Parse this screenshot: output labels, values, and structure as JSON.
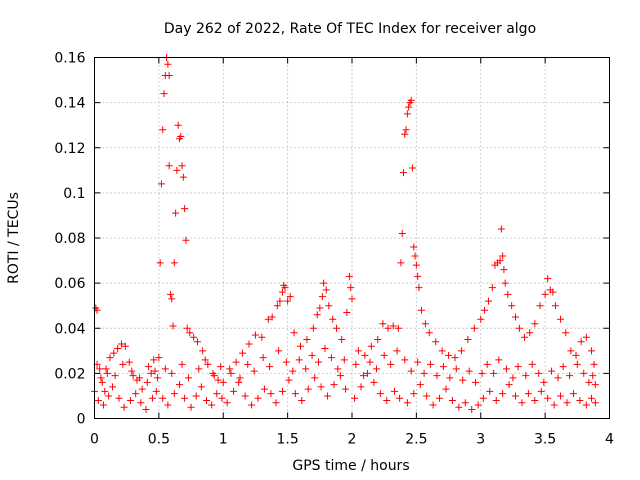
{
  "chart_data": {
    "type": "scatter",
    "title": "Day 262 of 2022, Rate Of TEC Index for receiver algo",
    "xlabel": "GPS time / hours",
    "ylabel": "ROTI / TECUs",
    "xlim": [
      0,
      4
    ],
    "ylim": [
      0,
      0.16
    ],
    "xticks": [
      0,
      0.5,
      1,
      1.5,
      2,
      2.5,
      3,
      3.5,
      4
    ],
    "xtick_labels": [
      "0",
      "0.5",
      "1",
      "1.5",
      "2",
      "2.5",
      "3",
      "3.5",
      "4"
    ],
    "yticks": [
      0,
      0.02,
      0.04,
      0.06,
      0.08,
      0.1,
      0.12,
      0.14,
      0.16
    ],
    "ytick_labels": [
      "0",
      "0.02",
      "0.04",
      "0.06",
      "0.08",
      "0.1",
      "0.12",
      "0.14",
      "0.16"
    ],
    "grid": true,
    "marker": "plus",
    "color": "#ff0000",
    "series": [
      {
        "name": "ROTI",
        "points": [
          [
            0.01,
            0.049
          ],
          [
            0.02,
            0.048
          ],
          [
            0.02,
            0.024
          ],
          [
            0.04,
            0.022
          ],
          [
            0.06,
            0.016
          ],
          [
            0.08,
            0.012
          ],
          [
            0.1,
            0.02
          ],
          [
            0.12,
            0.027
          ],
          [
            0.15,
            0.029
          ],
          [
            0.18,
            0.031
          ],
          [
            0.21,
            0.033
          ],
          [
            0.24,
            0.032
          ],
          [
            0.27,
            0.025
          ],
          [
            0.3,
            0.019
          ],
          [
            0.33,
            0.017
          ],
          [
            0.37,
            0.013
          ],
          [
            0.41,
            0.016
          ],
          [
            0.44,
            0.02
          ],
          [
            0.47,
            0.021
          ],
          [
            0.49,
            0.018
          ],
          [
            0.5,
            0.027
          ],
          [
            0.51,
            0.069
          ],
          [
            0.52,
            0.104
          ],
          [
            0.53,
            0.128
          ],
          [
            0.54,
            0.144
          ],
          [
            0.55,
            0.152
          ],
          [
            0.56,
            0.16
          ],
          [
            0.57,
            0.157
          ],
          [
            0.58,
            0.152
          ],
          [
            0.58,
            0.112
          ],
          [
            0.59,
            0.055
          ],
          [
            0.6,
            0.053
          ],
          [
            0.61,
            0.041
          ],
          [
            0.62,
            0.069
          ],
          [
            0.63,
            0.091
          ],
          [
            0.64,
            0.11
          ],
          [
            0.65,
            0.13
          ],
          [
            0.66,
            0.124
          ],
          [
            0.67,
            0.125
          ],
          [
            0.68,
            0.112
          ],
          [
            0.69,
            0.107
          ],
          [
            0.7,
            0.093
          ],
          [
            0.71,
            0.079
          ],
          [
            0.72,
            0.04
          ],
          [
            0.74,
            0.038
          ],
          [
            0.77,
            0.036
          ],
          [
            0.8,
            0.034
          ],
          [
            0.84,
            0.03
          ],
          [
            0.88,
            0.024
          ],
          [
            0.92,
            0.02
          ],
          [
            0.96,
            0.017
          ],
          [
            1.0,
            0.016
          ],
          [
            1.05,
            0.022
          ],
          [
            1.1,
            0.025
          ],
          [
            1.15,
            0.029
          ],
          [
            1.2,
            0.033
          ],
          [
            1.25,
            0.037
          ],
          [
            1.3,
            0.036
          ],
          [
            1.35,
            0.044
          ],
          [
            1.38,
            0.045
          ],
          [
            1.42,
            0.05
          ],
          [
            1.44,
            0.052
          ],
          [
            1.46,
            0.056
          ],
          [
            1.47,
            0.059
          ],
          [
            1.48,
            0.058
          ],
          [
            1.5,
            0.052
          ],
          [
            1.52,
            0.054
          ],
          [
            1.55,
            0.038
          ],
          [
            1.6,
            0.032
          ],
          [
            1.65,
            0.035
          ],
          [
            1.7,
            0.04
          ],
          [
            1.73,
            0.046
          ],
          [
            1.75,
            0.049
          ],
          [
            1.77,
            0.054
          ],
          [
            1.78,
            0.06
          ],
          [
            1.8,
            0.057
          ],
          [
            1.82,
            0.05
          ],
          [
            1.85,
            0.044
          ],
          [
            1.88,
            0.04
          ],
          [
            1.92,
            0.035
          ],
          [
            1.96,
            0.047
          ],
          [
            1.98,
            0.063
          ],
          [
            1.99,
            0.058
          ],
          [
            2.0,
            0.053
          ],
          [
            2.05,
            0.03
          ],
          [
            2.1,
            0.028
          ],
          [
            2.15,
            0.032
          ],
          [
            2.2,
            0.035
          ],
          [
            2.24,
            0.042
          ],
          [
            2.28,
            0.04
          ],
          [
            2.32,
            0.041
          ],
          [
            2.36,
            0.04
          ],
          [
            2.38,
            0.069
          ],
          [
            2.39,
            0.082
          ],
          [
            2.4,
            0.109
          ],
          [
            2.41,
            0.126
          ],
          [
            2.42,
            0.128
          ],
          [
            2.43,
            0.135
          ],
          [
            2.44,
            0.138
          ],
          [
            2.45,
            0.14
          ],
          [
            2.46,
            0.141
          ],
          [
            2.47,
            0.111
          ],
          [
            2.48,
            0.076
          ],
          [
            2.49,
            0.072
          ],
          [
            2.5,
            0.068
          ],
          [
            2.51,
            0.063
          ],
          [
            2.52,
            0.058
          ],
          [
            2.54,
            0.048
          ],
          [
            2.57,
            0.042
          ],
          [
            2.6,
            0.038
          ],
          [
            2.65,
            0.034
          ],
          [
            2.7,
            0.03
          ],
          [
            2.75,
            0.028
          ],
          [
            2.8,
            0.027
          ],
          [
            2.85,
            0.03
          ],
          [
            2.9,
            0.035
          ],
          [
            2.95,
            0.04
          ],
          [
            3.0,
            0.044
          ],
          [
            3.03,
            0.048
          ],
          [
            3.06,
            0.052
          ],
          [
            3.09,
            0.058
          ],
          [
            3.11,
            0.068
          ],
          [
            3.13,
            0.069
          ],
          [
            3.15,
            0.07
          ],
          [
            3.16,
            0.084
          ],
          [
            3.17,
            0.072
          ],
          [
            3.18,
            0.066
          ],
          [
            3.19,
            0.06
          ],
          [
            3.21,
            0.055
          ],
          [
            3.24,
            0.05
          ],
          [
            3.27,
            0.045
          ],
          [
            3.3,
            0.04
          ],
          [
            3.34,
            0.036
          ],
          [
            3.38,
            0.038
          ],
          [
            3.42,
            0.042
          ],
          [
            3.46,
            0.05
          ],
          [
            3.5,
            0.055
          ],
          [
            3.52,
            0.062
          ],
          [
            3.54,
            0.057
          ],
          [
            3.56,
            0.056
          ],
          [
            3.58,
            0.05
          ],
          [
            3.62,
            0.044
          ],
          [
            3.66,
            0.038
          ],
          [
            3.7,
            0.03
          ],
          [
            3.74,
            0.028
          ],
          [
            3.78,
            0.034
          ],
          [
            3.82,
            0.036
          ],
          [
            3.86,
            0.03
          ],
          [
            3.88,
            0.024
          ],
          [
            0.0,
            0.012
          ],
          [
            0.03,
            0.008
          ],
          [
            0.07,
            0.006
          ],
          [
            0.11,
            0.01
          ],
          [
            0.14,
            0.014
          ],
          [
            0.19,
            0.009
          ],
          [
            0.23,
            0.005
          ],
          [
            0.28,
            0.008
          ],
          [
            0.32,
            0.011
          ],
          [
            0.36,
            0.007
          ],
          [
            0.4,
            0.004
          ],
          [
            0.45,
            0.009
          ],
          [
            0.48,
            0.012
          ],
          [
            0.53,
            0.009
          ],
          [
            0.57,
            0.006
          ],
          [
            0.62,
            0.011
          ],
          [
            0.66,
            0.015
          ],
          [
            0.7,
            0.009
          ],
          [
            0.75,
            0.005
          ],
          [
            0.79,
            0.01
          ],
          [
            0.83,
            0.014
          ],
          [
            0.87,
            0.008
          ],
          [
            0.91,
            0.006
          ],
          [
            0.95,
            0.011
          ],
          [
            0.99,
            0.009
          ],
          [
            1.03,
            0.007
          ],
          [
            1.08,
            0.012
          ],
          [
            1.12,
            0.016
          ],
          [
            1.17,
            0.01
          ],
          [
            1.22,
            0.006
          ],
          [
            1.27,
            0.009
          ],
          [
            1.32,
            0.013
          ],
          [
            1.37,
            0.011
          ],
          [
            1.41,
            0.007
          ],
          [
            1.46,
            0.012
          ],
          [
            1.51,
            0.017
          ],
          [
            1.56,
            0.011
          ],
          [
            1.61,
            0.008
          ],
          [
            1.66,
            0.013
          ],
          [
            1.71,
            0.018
          ],
          [
            1.76,
            0.014
          ],
          [
            1.81,
            0.01
          ],
          [
            1.86,
            0.015
          ],
          [
            1.91,
            0.019
          ],
          [
            1.95,
            0.013
          ],
          [
            2.02,
            0.009
          ],
          [
            2.07,
            0.014
          ],
          [
            2.12,
            0.02
          ],
          [
            2.17,
            0.016
          ],
          [
            2.22,
            0.011
          ],
          [
            2.27,
            0.008
          ],
          [
            2.33,
            0.012
          ],
          [
            2.37,
            0.009
          ],
          [
            2.43,
            0.007
          ],
          [
            2.48,
            0.011
          ],
          [
            2.53,
            0.015
          ],
          [
            2.58,
            0.01
          ],
          [
            2.63,
            0.006
          ],
          [
            2.68,
            0.009
          ],
          [
            2.73,
            0.013
          ],
          [
            2.78,
            0.008
          ],
          [
            2.83,
            0.005
          ],
          [
            2.88,
            0.007
          ],
          [
            2.93,
            0.004
          ],
          [
            2.98,
            0.006
          ],
          [
            3.02,
            0.009
          ],
          [
            3.07,
            0.012
          ],
          [
            3.12,
            0.008
          ],
          [
            3.17,
            0.011
          ],
          [
            3.22,
            0.015
          ],
          [
            3.27,
            0.01
          ],
          [
            3.32,
            0.007
          ],
          [
            3.37,
            0.011
          ],
          [
            3.42,
            0.008
          ],
          [
            3.47,
            0.012
          ],
          [
            3.52,
            0.009
          ],
          [
            3.57,
            0.006
          ],
          [
            3.62,
            0.01
          ],
          [
            3.67,
            0.007
          ],
          [
            3.72,
            0.011
          ],
          [
            3.77,
            0.008
          ],
          [
            3.82,
            0.006
          ],
          [
            3.86,
            0.009
          ],
          [
            3.89,
            0.007
          ],
          [
            0.05,
            0.018
          ],
          [
            0.09,
            0.022
          ],
          [
            0.16,
            0.019
          ],
          [
            0.22,
            0.024
          ],
          [
            0.29,
            0.021
          ],
          [
            0.35,
            0.018
          ],
          [
            0.42,
            0.023
          ],
          [
            0.46,
            0.026
          ],
          [
            0.55,
            0.022
          ],
          [
            0.6,
            0.02
          ],
          [
            0.68,
            0.024
          ],
          [
            0.73,
            0.018
          ],
          [
            0.81,
            0.022
          ],
          [
            0.86,
            0.026
          ],
          [
            0.93,
            0.019
          ],
          [
            0.98,
            0.023
          ],
          [
            1.06,
            0.02
          ],
          [
            1.13,
            0.018
          ],
          [
            1.19,
            0.024
          ],
          [
            1.24,
            0.021
          ],
          [
            1.31,
            0.027
          ],
          [
            1.36,
            0.023
          ],
          [
            1.43,
            0.03
          ],
          [
            1.49,
            0.025
          ],
          [
            1.54,
            0.021
          ],
          [
            1.59,
            0.026
          ],
          [
            1.64,
            0.022
          ],
          [
            1.69,
            0.028
          ],
          [
            1.74,
            0.025
          ],
          [
            1.79,
            0.031
          ],
          [
            1.84,
            0.027
          ],
          [
            1.89,
            0.022
          ],
          [
            1.94,
            0.026
          ],
          [
            2.03,
            0.024
          ],
          [
            2.09,
            0.019
          ],
          [
            2.14,
            0.025
          ],
          [
            2.19,
            0.022
          ],
          [
            2.25,
            0.028
          ],
          [
            2.3,
            0.024
          ],
          [
            2.35,
            0.03
          ],
          [
            2.41,
            0.026
          ],
          [
            2.46,
            0.021
          ],
          [
            2.51,
            0.025
          ],
          [
            2.56,
            0.02
          ],
          [
            2.61,
            0.024
          ],
          [
            2.66,
            0.019
          ],
          [
            2.71,
            0.023
          ],
          [
            2.76,
            0.018
          ],
          [
            2.81,
            0.022
          ],
          [
            2.86,
            0.017
          ],
          [
            2.91,
            0.021
          ],
          [
            2.96,
            0.016
          ],
          [
            3.01,
            0.02
          ],
          [
            3.05,
            0.024
          ],
          [
            3.1,
            0.02
          ],
          [
            3.14,
            0.026
          ],
          [
            3.2,
            0.022
          ],
          [
            3.25,
            0.018
          ],
          [
            3.29,
            0.023
          ],
          [
            3.35,
            0.019
          ],
          [
            3.4,
            0.024
          ],
          [
            3.45,
            0.02
          ],
          [
            3.49,
            0.016
          ],
          [
            3.55,
            0.021
          ],
          [
            3.6,
            0.018
          ],
          [
            3.64,
            0.023
          ],
          [
            3.69,
            0.019
          ],
          [
            3.75,
            0.024
          ],
          [
            3.8,
            0.02
          ],
          [
            3.84,
            0.016
          ],
          [
            3.87,
            0.019
          ],
          [
            3.89,
            0.015
          ]
        ]
      }
    ]
  }
}
